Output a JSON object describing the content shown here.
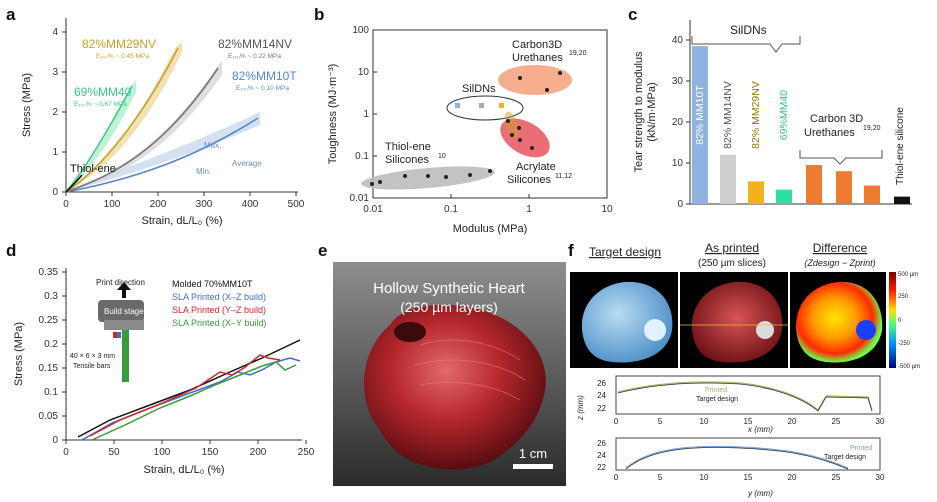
{
  "panels": [
    "a",
    "b",
    "c",
    "d",
    "e",
    "f"
  ],
  "a": {
    "xlabel": "Strain, dL/L₀ (%)",
    "ylabel": "Stress (MPa)",
    "xticks": [
      "0",
      "100",
      "200",
      "300",
      "400",
      "500"
    ],
    "yticks": [
      "0",
      "1",
      "2",
      "3",
      "4"
    ],
    "labels": {
      "mm29": "82%MM29NV",
      "mm29_e": "E₁₀₀% ~ 0.45 MPa",
      "mm14": "82%MM14NV",
      "mm14_e": "E₁₀₀% ~ 0.22 MPa",
      "mm40": "69%MM40",
      "mm40_e": "E₁₀₀% ~ 0.67 MPa",
      "mm10": "82%MM10T",
      "mm10_e": "E₁₀₀% ~ 0.10 MPa",
      "thiol": "Thiol-ene",
      "max": "Max.",
      "min": "Min.",
      "avg": "Average"
    }
  },
  "b": {
    "xlabel": "Modulus (MPa)",
    "ylabel": "Toughness (MJ·m⁻³)",
    "xticks": [
      "0.01",
      "0.1",
      "1",
      "10"
    ],
    "yticks": [
      "100",
      "10",
      "1",
      "0.1",
      "0.01"
    ],
    "labels": {
      "carbon": "Carbon3D",
      "carbon2": "Urethanes",
      "carbon_ref": "19,20",
      "sildns": "SilDNs",
      "thiol": "Thiol-ene",
      "thiol2": "Silicones",
      "thiol_ref": "10",
      "acryl": "Acrylate",
      "acryl2": "Silicones",
      "acryl_ref": "11,12"
    }
  },
  "c": {
    "ylabel1": "Tear strength to modulus",
    "ylabel2": "(kN/m·MPa)",
    "yticks": [
      "0",
      "10",
      "20",
      "30",
      "40"
    ],
    "group_label": "SilDNs",
    "carbon_label": "Carbon 3D",
    "carbon_label2": "Urethanes",
    "carbon_ref": "19,20",
    "thiol_label": "Thiol-ene silicone",
    "bars": [
      {
        "label": "82% MM10T",
        "value": 38.5,
        "color": "#8fb2e0"
      },
      {
        "label": "82% MM14NV",
        "value": 12,
        "color": "#cfcfcf"
      },
      {
        "label": "82% MM29NV",
        "value": 5.5,
        "color": "#f2b21b"
      },
      {
        "label": "69%MM40",
        "value": 3.5,
        "color": "#2ee0a0"
      },
      {
        "label": "",
        "value": 9.5,
        "color": "#ee7b30"
      },
      {
        "label": "",
        "value": 8,
        "color": "#ee7b30"
      },
      {
        "label": "",
        "value": 4.5,
        "color": "#ee7b30"
      },
      {
        "label": "",
        "value": 1.8,
        "color": "#111111"
      }
    ]
  },
  "d": {
    "xlabel": "Strain, dL/L₀ (%)",
    "ylabel": "Stress (MPa)",
    "xticks": [
      "0",
      "50",
      "100",
      "150",
      "200",
      "250"
    ],
    "yticks": [
      "0",
      "0.05",
      "0.1",
      "0.15",
      "0.2",
      "0.25",
      "0.3",
      "0.35"
    ],
    "legend": [
      {
        "text": "Molded  70%MM10T",
        "color": "#111111"
      },
      {
        "text": "SLA Printed (X–Z build)",
        "color": "#3b6fd1"
      },
      {
        "text": "SLA Printed (Y–Z build)",
        "color": "#d0282a"
      },
      {
        "text": "SLA Printed (X–Y build)",
        "color": "#3a9b3a"
      }
    ],
    "print_direction": "Print direction",
    "build_stage": "Build stage",
    "tensile1": "40 × 6 × 3 mm",
    "tensile2": "Tensile bars"
  },
  "e": {
    "title": "Hollow Synthetic Heart",
    "subtitle": "(250 µm layers)",
    "scale": "1 cm"
  },
  "f": {
    "target": "Target design",
    "printed": "As printed",
    "printed_sub": "(250 µm slices)",
    "diff": "Difference",
    "diff_sub": "(Zdesign − Zprint)",
    "cbar_ticks": [
      "500 µm",
      "250",
      "0",
      "-250",
      "-500 µm"
    ],
    "plot1_xlabel": "x (mm)",
    "plot2_xlabel": "y (mm)",
    "zlabel": "z (mm)",
    "xticks": [
      "0",
      "5",
      "10",
      "15",
      "20",
      "25",
      "30"
    ],
    "zticks1": [
      "26",
      "24",
      "22"
    ],
    "zticks2": [
      "26",
      "24",
      "22"
    ],
    "legend_printed": "Printed",
    "legend_target": "Target design"
  }
}
